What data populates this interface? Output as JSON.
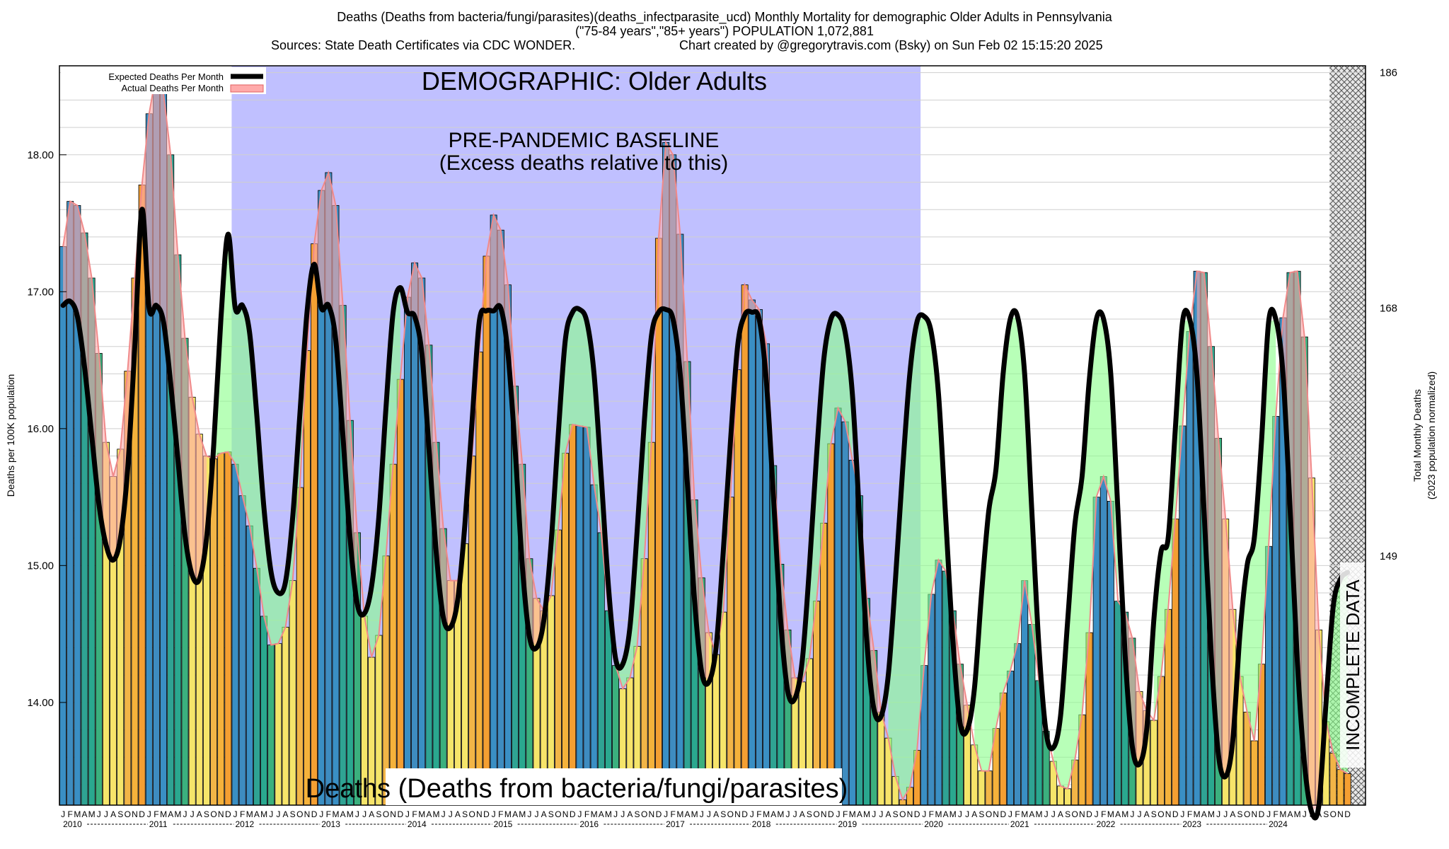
{
  "header": {
    "title_line1": "Deaths (Deaths from bacteria/fungi/parasites)(deaths_infectparasite_ucd) Monthly Mortality for demographic Older Adults in Pennsylvania",
    "title_line2": "(\"75-84 years\",\"85+ years\") POPULATION 1,072,881",
    "sources": "Sources: State Death Certificates via CDC WONDER.",
    "credit": "Chart created by @gregorytravis.com (Bsky) on Sun Feb 02 15:15:20 2025"
  },
  "chart_data": {
    "type": "bar",
    "demographic_label": "DEMOGRAPHIC: Older Adults",
    "baseline_label_1": "PRE-PANDEMIC BASELINE",
    "baseline_label_2": "(Excess deaths relative to this)",
    "cause_label": "Deaths (Deaths from bacteria/fungi/parasites)",
    "incomplete_label": "INCOMPLETE DATA",
    "ylabel_left": "Deaths per 100K population",
    "ylabel_right_1": "Total Monthly Deaths",
    "ylabel_right_2": "(2023 population normalized)",
    "legend": {
      "expected": "Expected Deaths Per Month",
      "actual": "Actual Deaths Per Month",
      "placement": "top-left"
    },
    "ylim": [
      13.25,
      18.65
    ],
    "y_ticks": [
      "14.00",
      "15.00",
      "16.00",
      "17.00",
      "18.00"
    ],
    "y_tick_values": [
      14,
      15,
      16,
      17,
      18
    ],
    "y2_ticks": [
      "149",
      "168",
      "186"
    ],
    "y2_tick_values": [
      149,
      168,
      186
    ],
    "month_letters": [
      "J",
      "F",
      "M",
      "A",
      "M",
      "J",
      "J",
      "A",
      "S",
      "O",
      "N",
      "D"
    ],
    "years": [
      "2010",
      "2011",
      "2012",
      "2013",
      "2014",
      "2015",
      "2016",
      "2017",
      "2018",
      "2019",
      "2020",
      "2021",
      "2022",
      "2023",
      "2024"
    ],
    "baseline_period": [
      "2012-01",
      "2019-12"
    ],
    "incomplete_from": "2024-10",
    "colors": {
      "baseline": "#c0c0ff",
      "expected": "#000000",
      "actual_fill": "#ffaaaa",
      "excess": "#88ff88",
      "incomplete": "#aaaaaa"
    },
    "actual": [
      17.33,
      17.66,
      17.63,
      17.43,
      17.1,
      16.55,
      15.9,
      15.65,
      15.85,
      16.42,
      17.1,
      17.78,
      18.3,
      18.6,
      18.45,
      18.0,
      17.27,
      16.66,
      16.23,
      15.96,
      15.8,
      15.78,
      15.82,
      15.83,
      15.74,
      15.51,
      15.29,
      14.98,
      14.63,
      14.42,
      14.43,
      14.55,
      14.89,
      15.57,
      16.57,
      17.35,
      17.74,
      17.87,
      17.63,
      16.9,
      16.06,
      15.24,
      14.63,
      14.33,
      14.49,
      15.07,
      15.74,
      16.36,
      16.96,
      17.21,
      17.1,
      16.61,
      15.9,
      15.27,
      14.89,
      14.89,
      15.16,
      15.8,
      16.56,
      17.26,
      17.56,
      17.45,
      17.05,
      16.31,
      15.74,
      15.05,
      14.76,
      14.67,
      14.78,
      15.26,
      15.82,
      16.03,
      16.02,
      16.01,
      15.59,
      15.24,
      14.67,
      14.27,
      14.1,
      14.18,
      14.41,
      15.05,
      15.9,
      17.39,
      18.09,
      18.0,
      17.42,
      16.49,
      15.48,
      14.91,
      14.51,
      14.35,
      14.66,
      15.5,
      16.43,
      17.05,
      16.94,
      16.87,
      16.62,
      15.73,
      15.01,
      14.53,
      14.18,
      14.15,
      14.32,
      14.74,
      15.31,
      15.89,
      16.15,
      16.05,
      15.77,
      15.51,
      14.76,
      14.38,
      13.93,
      13.74,
      13.46,
      13.29,
      13.38,
      13.65,
      14.27,
      14.79,
      15.04,
      14.96,
      14.67,
      14.28,
      13.98,
      13.69,
      13.5,
      13.5,
      13.81,
      14.07,
      14.23,
      14.43,
      14.89,
      14.57,
      14.16,
      13.79,
      13.57,
      13.39,
      13.37,
      13.58,
      13.91,
      14.51,
      15.5,
      15.65,
      15.47,
      14.74,
      14.66,
      14.47,
      14.08,
      13.94,
      13.87,
      14.19,
      14.68,
      15.34,
      16.02,
      16.71,
      17.15,
      17.14,
      16.6,
      15.93,
      15.34,
      14.68,
      14.19,
      13.93,
      13.72,
      14.28,
      15.14,
      16.09,
      16.81,
      17.14,
      17.15,
      16.67,
      15.64,
      14.53,
      13.86,
      13.63,
      13.51,
      13.48
    ],
    "expected": [
      16.9,
      16.93,
      16.82,
      16.45,
      15.95,
      15.45,
      15.15,
      15.04,
      15.2,
      15.7,
      16.6,
      17.6,
      16.88,
      16.9,
      16.78,
      16.33,
      15.78,
      15.22,
      14.93,
      14.9,
      15.2,
      15.88,
      16.8,
      17.42,
      16.88,
      16.9,
      16.7,
      16.1,
      15.42,
      14.95,
      14.8,
      14.88,
      15.35,
      16.1,
      16.85,
      17.2,
      16.88,
      16.9,
      16.65,
      15.95,
      15.2,
      14.72,
      14.65,
      14.85,
      15.35,
      16.15,
      16.85,
      17.03,
      16.85,
      16.82,
      16.55,
      15.85,
      15.1,
      14.62,
      14.55,
      14.75,
      15.3,
      16.05,
      16.78,
      16.86,
      16.86,
      16.88,
      16.55,
      15.85,
      15.0,
      14.48,
      14.4,
      14.6,
      15.15,
      15.95,
      16.65,
      16.85,
      16.87,
      16.78,
      16.4,
      15.65,
      14.85,
      14.32,
      14.28,
      14.55,
      15.25,
      16.05,
      16.68,
      16.85,
      16.87,
      16.8,
      16.4,
      15.6,
      14.75,
      14.22,
      14.15,
      14.4,
      15.1,
      15.9,
      16.6,
      16.83,
      16.85,
      16.8,
      16.35,
      15.5,
      14.6,
      14.08,
      14.03,
      14.3,
      14.98,
      15.8,
      16.5,
      16.8,
      16.83,
      16.7,
      16.25,
      15.35,
      14.45,
      13.95,
      13.9,
      14.2,
      14.9,
      15.7,
      16.4,
      16.78,
      16.82,
      16.7,
      16.25,
      15.35,
      14.45,
      13.85,
      13.8,
      14.1,
      14.8,
      15.4,
      15.7,
      16.4,
      16.8,
      16.82,
      16.4,
      15.4,
      14.4,
      13.78,
      13.67,
      13.9,
      14.6,
      15.3,
      15.65,
      16.35,
      16.8,
      16.8,
      16.4,
      15.4,
      14.35,
      13.68,
      13.55,
      13.8,
      14.6,
      15.1,
      15.2,
      16.0,
      16.78,
      16.8,
      16.4,
      15.4,
      14.35,
      13.62,
      13.46,
      13.72,
      14.5,
      15.0,
      15.2,
      15.9,
      16.78,
      16.8,
      16.4,
      15.4,
      14.3,
      13.55,
      13.2,
      13.25,
      14.0,
      14.7,
      14.9,
      14.95
    ]
  }
}
